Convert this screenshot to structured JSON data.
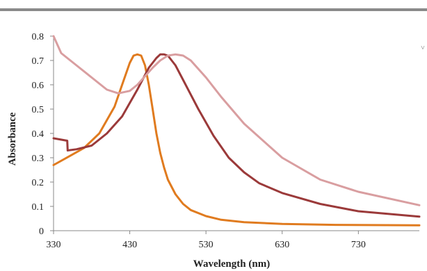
{
  "chart_data": {
    "type": "line",
    "title": "",
    "xlabel": "Wavelength (nm)",
    "ylabel": "Absorbance",
    "xlim": [
      330,
      810
    ],
    "ylim": [
      0,
      0.8
    ],
    "x_ticks": [
      330,
      430,
      530,
      630,
      730
    ],
    "y_ticks": [
      0,
      0.1,
      0.2,
      0.3,
      0.4,
      0.5,
      0.6,
      0.7,
      0.8
    ],
    "y_tick_labels": [
      "0",
      "0.1",
      "0.2",
      "0.3",
      "0.4",
      "0.5",
      "0.6",
      "0.7",
      "0.8"
    ],
    "grid": false,
    "legend": "none",
    "series": [
      {
        "color": "#e07b1f",
        "x": [
          330,
          350,
          370,
          390,
          410,
          420,
          430,
          435,
          440,
          445,
          450,
          455,
          460,
          465,
          470,
          475,
          480,
          490,
          500,
          510,
          530,
          550,
          580,
          630,
          700,
          810
        ],
        "y": [
          0.27,
          0.305,
          0.34,
          0.4,
          0.51,
          0.6,
          0.69,
          0.72,
          0.725,
          0.72,
          0.68,
          0.6,
          0.5,
          0.4,
          0.32,
          0.26,
          0.21,
          0.15,
          0.11,
          0.085,
          0.06,
          0.045,
          0.035,
          0.028,
          0.024,
          0.022
        ]
      },
      {
        "color": "#9b3a3a",
        "x": [
          330,
          348,
          348.5,
          360,
          380,
          400,
          420,
          440,
          455,
          465,
          470,
          475,
          480,
          490,
          500,
          520,
          540,
          560,
          580,
          600,
          630,
          680,
          730,
          810
        ],
        "y": [
          0.38,
          0.37,
          0.33,
          0.335,
          0.35,
          0.4,
          0.47,
          0.58,
          0.67,
          0.71,
          0.725,
          0.725,
          0.72,
          0.68,
          0.62,
          0.5,
          0.39,
          0.3,
          0.24,
          0.195,
          0.155,
          0.11,
          0.08,
          0.058
        ]
      },
      {
        "color": "#d99ea0",
        "x": [
          330,
          340,
          360,
          380,
          400,
          415,
          430,
          440,
          450,
          460,
          470,
          480,
          490,
          500,
          510,
          530,
          550,
          580,
          630,
          680,
          730,
          810
        ],
        "y": [
          0.8,
          0.73,
          0.68,
          0.63,
          0.58,
          0.565,
          0.575,
          0.6,
          0.635,
          0.67,
          0.7,
          0.72,
          0.725,
          0.72,
          0.7,
          0.63,
          0.55,
          0.44,
          0.3,
          0.21,
          0.16,
          0.105
        ]
      }
    ]
  }
}
